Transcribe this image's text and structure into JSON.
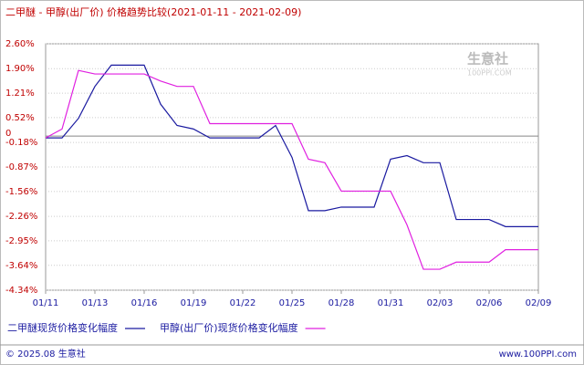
{
  "chart_data": {
    "type": "line",
    "title": "二甲醚 - 甲醇(出厂价) 价格趋势比较(2021-01-11 - 2021-02-09)",
    "watermark": "生意社",
    "watermark_sub": "100PPI.COM",
    "categories": [
      "01/11",
      null,
      null,
      "01/13",
      null,
      null,
      "01/16",
      null,
      null,
      "01/19",
      null,
      null,
      "01/22",
      null,
      null,
      "01/25",
      null,
      null,
      "01/28",
      null,
      null,
      "01/31",
      null,
      null,
      "02/03",
      null,
      null,
      "02/06",
      null,
      null,
      "02/09"
    ],
    "series": [
      {
        "name": "二甲醚现货价格变化幅度",
        "color": "#1a1aa0",
        "values": [
          -0.05,
          -0.05,
          0.5,
          1.4,
          2.0,
          2.0,
          2.0,
          0.9,
          0.3,
          0.2,
          -0.05,
          -0.05,
          -0.05,
          -0.05,
          0.3,
          -0.6,
          -2.1,
          -2.1,
          -2.0,
          -2.0,
          -2.0,
          -0.65,
          -0.55,
          -0.75,
          -0.75,
          -2.35,
          -2.35,
          -2.35,
          -2.55,
          -2.55,
          -2.55
        ]
      },
      {
        "name": "甲醇(出厂价)现货价格变化幅度",
        "color": "#e020e0",
        "values": [
          -0.05,
          0.2,
          1.85,
          1.75,
          1.75,
          1.75,
          1.75,
          1.55,
          1.4,
          1.4,
          0.35,
          0.35,
          0.35,
          0.35,
          0.35,
          0.35,
          -0.65,
          -0.75,
          -1.55,
          -1.55,
          -1.55,
          -1.55,
          -2.5,
          -3.75,
          -3.75,
          -3.55,
          -3.55,
          -3.55,
          -3.2,
          -3.2,
          -3.2
        ]
      }
    ],
    "ylim": [
      -4.34,
      2.6
    ],
    "yticks": [
      {
        "value": 2.6,
        "label": "2.60%"
      },
      {
        "value": 1.9,
        "label": "1.90%"
      },
      {
        "value": 1.21,
        "label": "1.21%"
      },
      {
        "value": 0.52,
        "label": "0.52%"
      },
      0,
      {
        "value": -0.18,
        "label": "-0.18%"
      },
      {
        "value": -0.87,
        "label": "-0.87%"
      },
      {
        "value": -1.56,
        "label": "-1.56%"
      },
      {
        "value": -2.26,
        "label": "-2.26%"
      },
      {
        "value": -2.95,
        "label": "-2.95%"
      },
      {
        "value": -3.64,
        "label": "-3.64%"
      },
      {
        "value": -4.34,
        "label": "-4.34%"
      }
    ],
    "grid": true,
    "footer_left": "© 2025.08 生意社",
    "footer_right": "www.100PPI.com"
  }
}
